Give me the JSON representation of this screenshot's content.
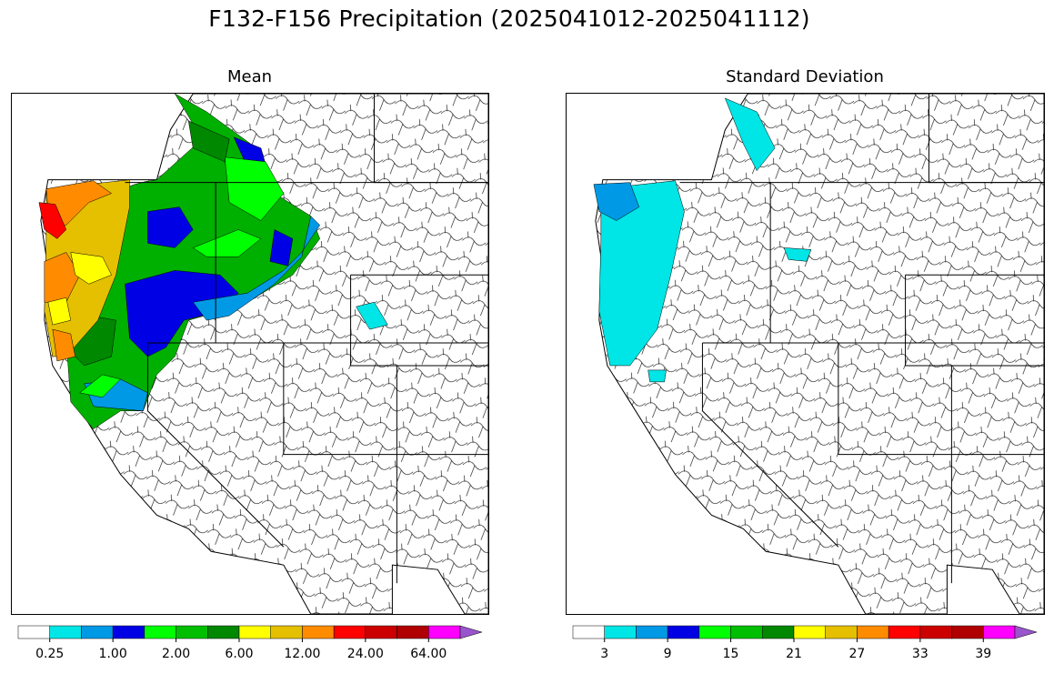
{
  "title": "F132-F156 Precipitation (2025041012-2025041112)",
  "panels": {
    "mean": {
      "title": "Mean",
      "colorbar": {
        "colors": [
          "#ffffff",
          "#00e5e5",
          "#0099e5",
          "#0000e5",
          "#00ff00",
          "#00bf00",
          "#008800",
          "#ffff00",
          "#e5c000",
          "#ff8c00",
          "#ff0000",
          "#cc0000",
          "#b00000",
          "#ff00ff",
          "#9955cc"
        ],
        "tick_labels": [
          "0.25",
          "1.00",
          "2.00",
          "6.00",
          "12.00",
          "24.00",
          "64.00"
        ],
        "extend": "max"
      }
    },
    "std": {
      "title": "Standard Deviation",
      "colorbar": {
        "colors": [
          "#ffffff",
          "#00e5e5",
          "#0099e5",
          "#0000e5",
          "#00ff00",
          "#00bf00",
          "#008800",
          "#ffff00",
          "#e5c000",
          "#ff8c00",
          "#ff0000",
          "#cc0000",
          "#b00000",
          "#ff00ff",
          "#9955cc"
        ],
        "tick_labels": [
          "3",
          "9",
          "15",
          "21",
          "27",
          "33",
          "39"
        ],
        "extend": "max"
      }
    }
  }
}
